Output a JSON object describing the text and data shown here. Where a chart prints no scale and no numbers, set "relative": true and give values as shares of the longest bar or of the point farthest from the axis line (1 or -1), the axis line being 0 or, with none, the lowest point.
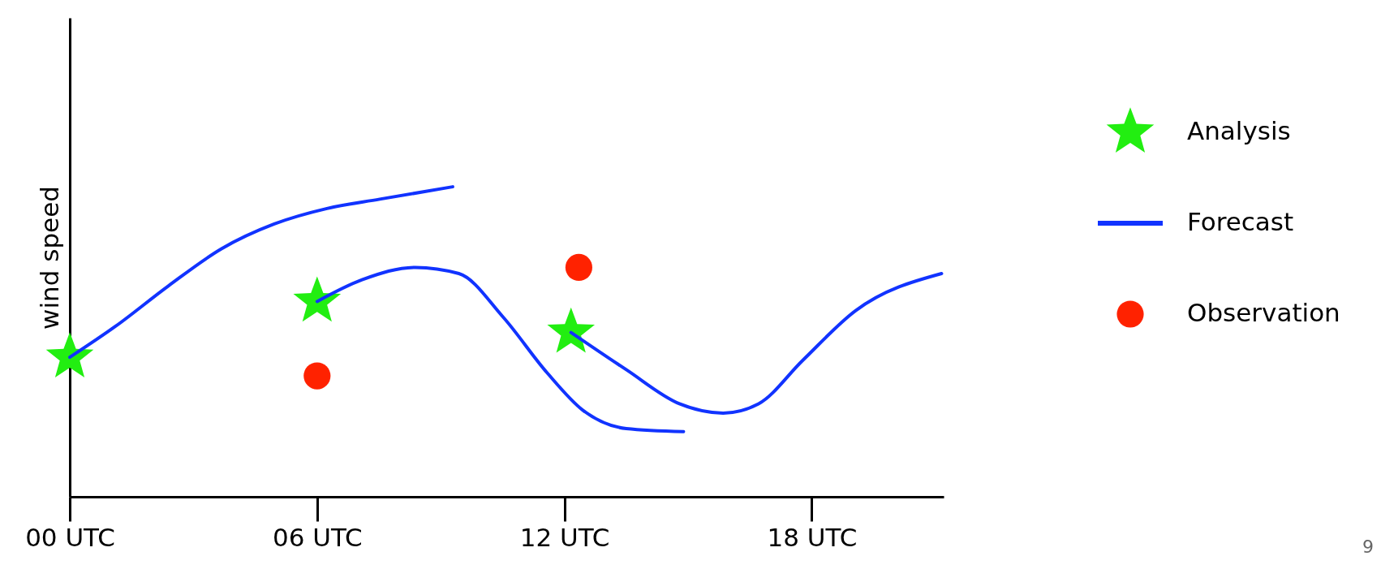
{
  "chart_data": {
    "type": "line",
    "relative": true,
    "ylabel": "wind speed",
    "xlim": [
      0,
      21.2
    ],
    "xticks": [
      {
        "value": 0,
        "label": "00 UTC"
      },
      {
        "value": 6,
        "label": "06 UTC"
      },
      {
        "value": 12,
        "label": "12 UTC"
      },
      {
        "value": 18,
        "label": "18 UTC"
      }
    ],
    "grid": false,
    "legend": "right",
    "line_style": "solid",
    "series": [
      {
        "name": "Analysis",
        "type": "scatter",
        "marker": "star",
        "color": "#22ee11",
        "x": [
          0,
          6,
          12.16
        ],
        "values": [
          0.45,
          0.63,
          0.53
        ]
      },
      {
        "name": "Forecast",
        "marker": "none",
        "color": "#1133ff",
        "x": [
          0,
          1.11,
          2.39,
          3.68,
          4.96,
          6.24,
          7.52,
          9.29
        ],
        "values": [
          0.45,
          0.55,
          0.68,
          0.8,
          0.88,
          0.93,
          0.96,
          1.0
        ]
      },
      {
        "marker": "none",
        "color": "#1133ff",
        "x": [
          6,
          7.09,
          8.38,
          9.44,
          10.51,
          11.58,
          12.44,
          13.5,
          14.89
        ],
        "values": [
          0.63,
          0.7,
          0.74,
          0.72,
          0.58,
          0.4,
          0.28,
          0.22,
          0.21
        ]
      },
      {
        "marker": "none",
        "color": "#1133ff",
        "x": [
          12.16,
          13.5,
          14.79,
          15.85,
          16.71,
          17.78,
          19.06,
          21.15
        ],
        "values": [
          0.53,
          0.41,
          0.3,
          0.27,
          0.3,
          0.44,
          0.6,
          0.72
        ]
      },
      {
        "name": "Observation",
        "type": "scatter",
        "marker": "circle",
        "color": "#ff2200",
        "x": [
          6,
          12.35
        ],
        "values": [
          0.39,
          0.74
        ]
      }
    ],
    "annotations": [
      "9"
    ]
  }
}
